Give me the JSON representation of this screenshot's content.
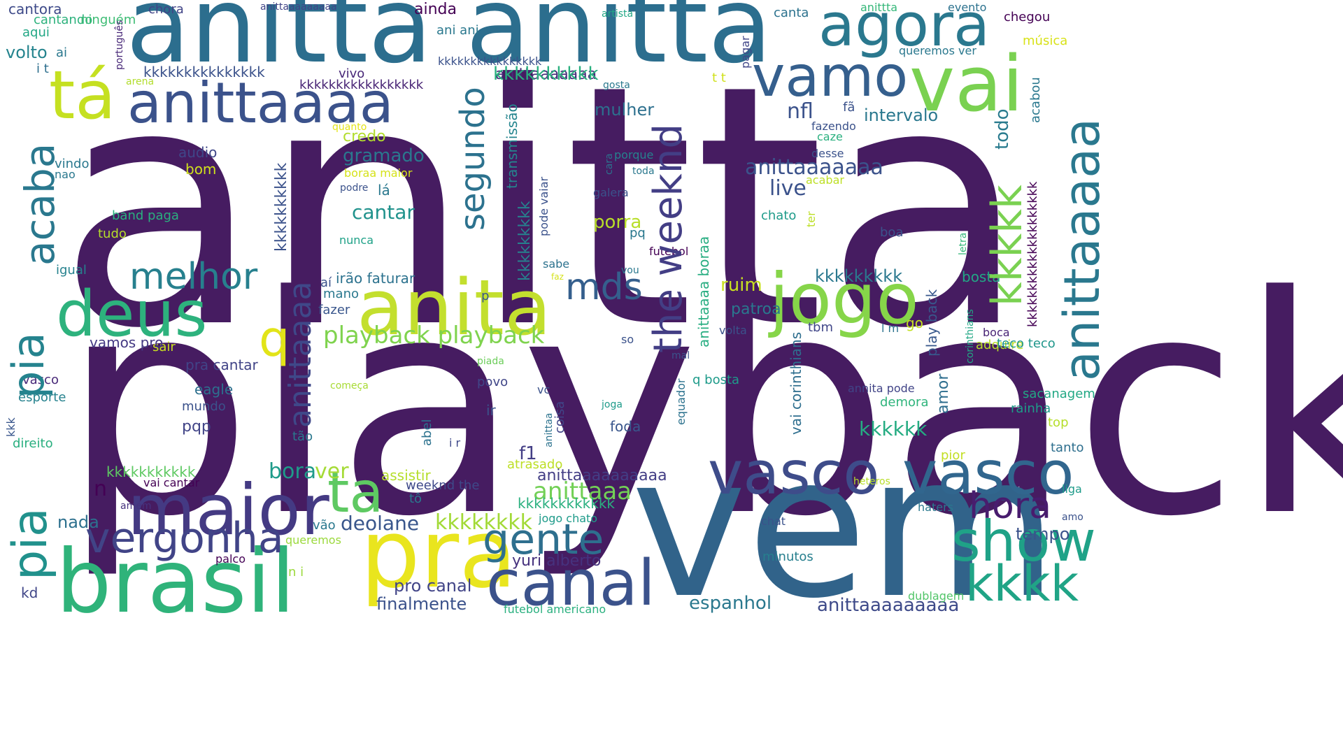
{
  "words": [
    {
      "text": "anitta",
      "color": "#461c61"
    },
    {
      "text": "playback",
      "color": "#461c61"
    },
    {
      "text": "vem",
      "color": "#31638a"
    },
    {
      "text": "anitta anitta",
      "color": "#2c6e8e"
    },
    {
      "text": "brasil",
      "color": "#2fb37a"
    },
    {
      "text": "pra",
      "color": "#e9e51e"
    },
    {
      "text": "maior",
      "color": "#443a83"
    },
    {
      "text": "anita",
      "color": "#c3df2e"
    },
    {
      "text": "deus",
      "color": "#2db27d"
    },
    {
      "text": "jogo",
      "color": "#86d549"
    },
    {
      "text": "vai",
      "color": "#7ad151"
    },
    {
      "text": "tá",
      "color": "#c5e021"
    },
    {
      "text": "anittaaaa",
      "color": "#3b528b"
    },
    {
      "text": "canal",
      "color": "#3b528b"
    },
    {
      "text": "vasco",
      "color": "#3e4c8a"
    },
    {
      "text": "vasco",
      "color": "#31668e"
    },
    {
      "text": "agora",
      "color": "#2a788e"
    },
    {
      "text": "vamo",
      "color": "#355f8d"
    },
    {
      "text": "show",
      "color": "#1fa287"
    },
    {
      "text": "kkkk",
      "color": "#20a486"
    },
    {
      "text": "ta",
      "color": "#5ec962"
    },
    {
      "text": "vergonha",
      "color": "#414487"
    },
    {
      "text": "gente",
      "color": "#2e6f8e"
    },
    {
      "text": "melhor",
      "color": "#27808e"
    },
    {
      "text": "hora",
      "color": "#481c6e"
    },
    {
      "text": "mds",
      "color": "#355f8d"
    },
    {
      "text": "q",
      "color": "#e2e418"
    },
    {
      "text": "playback playback",
      "color": "#7fd34e"
    },
    {
      "text": "anittaaaa",
      "color": "#3f4889"
    },
    {
      "text": "anittaaaaa",
      "color": "#2a788e"
    },
    {
      "text": "acaba",
      "color": "#2a788e"
    },
    {
      "text": "pia",
      "color": "#25838e"
    },
    {
      "text": "pia",
      "color": "#21918c"
    },
    {
      "text": "the weeknd",
      "color": "#433e85"
    },
    {
      "text": "segundo",
      "color": "#2c728e"
    },
    {
      "text": "kkkkk",
      "color": "#7ad151"
    },
    {
      "text": "anittaaaaaaa",
      "color": "#3b528b"
    },
    {
      "text": "kkkkkkkk",
      "color": "#a2da37"
    },
    {
      "text": "anittaaa",
      "color": "#73d056"
    },
    {
      "text": "anittaaaaaaaaa",
      "color": "#3e4a89"
    },
    {
      "text": "anittaaaaaaa",
      "color": "#472c7a"
    },
    {
      "text": "anittaaaaaaaaaa",
      "color": "#433e85"
    },
    {
      "text": "deolane",
      "color": "#39568c"
    },
    {
      "text": "espanhol",
      "color": "#2a788e"
    },
    {
      "text": "finalmente",
      "color": "#3b528b"
    },
    {
      "text": "pro canal",
      "color": "#414487"
    },
    {
      "text": "yuri alberto",
      "color": "#46327e"
    },
    {
      "text": "nada",
      "color": "#2d708e"
    },
    {
      "text": "bora",
      "color": "#1e9b8a"
    },
    {
      "text": "ver",
      "color": "#a5db36"
    },
    {
      "text": "n",
      "color": "#440154"
    },
    {
      "text": "kkkkkkkkkkk",
      "color": "#5ec962"
    },
    {
      "text": "kkkkkkkkkkkk",
      "color": "#2ab07f"
    },
    {
      "text": "assistir",
      "color": "#b5de2b"
    },
    {
      "text": "weeknd the",
      "color": "#3e4989"
    },
    {
      "text": "atrasado",
      "color": "#bddf26"
    },
    {
      "text": "pior",
      "color": "#c2df23"
    },
    {
      "text": "f1",
      "color": "#433e85"
    },
    {
      "text": "kkkkkk",
      "color": "#25ac82"
    },
    {
      "text": "kkkkkkkkkk",
      "color": "#2ab07f"
    },
    {
      "text": "kkkkkkkkkkkkkkk",
      "color": "#3b528b"
    },
    {
      "text": "kkkkkkkkkkkkkkkkk",
      "color": "#482475"
    },
    {
      "text": "kkkkkkkkkkkkkkkkkkkk",
      "color": "#440154"
    },
    {
      "text": "kkkkkkkkk",
      "color": "#2a788e"
    },
    {
      "text": "kkkkkkkkkk",
      "color": "#3b528b"
    },
    {
      "text": "kkkkkkkkk",
      "color": "#26828e"
    },
    {
      "text": "nfl",
      "color": "#3b528b"
    },
    {
      "text": "intervalo",
      "color": "#2a788e"
    },
    {
      "text": "live",
      "color": "#3b528b"
    },
    {
      "text": "mulher",
      "color": "#2d708e"
    },
    {
      "text": "cantar",
      "color": "#20928c"
    },
    {
      "text": "gramado",
      "color": "#2a788e"
    },
    {
      "text": "credo",
      "color": "#b2dd2d"
    },
    {
      "text": "porra",
      "color": "#b8de29"
    },
    {
      "text": "ruim",
      "color": "#c8e020"
    },
    {
      "text": "patroa",
      "color": "#2a788e"
    },
    {
      "text": "irão faturar",
      "color": "#2c728e"
    },
    {
      "text": "amor",
      "color": "#2e6e8e"
    },
    {
      "text": "play back",
      "color": "#38588c"
    },
    {
      "text": "vai corinthians",
      "color": "#2e6e8e"
    },
    {
      "text": "transmissão",
      "color": "#25858e"
    },
    {
      "text": "todo",
      "color": "#297b8e"
    },
    {
      "text": "acabou",
      "color": "#2a788e"
    },
    {
      "text": "anittaaaa boraa",
      "color": "#27ad81"
    },
    {
      "text": "corinthians",
      "color": "#22a785"
    },
    {
      "text": "adquire",
      "color": "#b8de29"
    },
    {
      "text": "sacanagem",
      "color": "#22a884"
    },
    {
      "text": "rainha",
      "color": "#1e9c89"
    },
    {
      "text": "tempo",
      "color": "#3b528b"
    },
    {
      "text": "demora",
      "color": "#2fb47c"
    },
    {
      "text": "teco teco",
      "color": "#1f968b"
    },
    {
      "text": "minutos",
      "color": "#277f8e"
    },
    {
      "text": "dublagem",
      "color": "#52c569"
    },
    {
      "text": "queremos",
      "color": "#9bd93c"
    },
    {
      "text": "palco",
      "color": "#440154"
    },
    {
      "text": "direito",
      "color": "#29af7f"
    },
    {
      "text": "kkk",
      "color": "#39568c"
    },
    {
      "text": "kd",
      "color": "#404688"
    },
    {
      "text": "vasco",
      "color": "#482878"
    },
    {
      "text": "esporte",
      "color": "#26828e"
    },
    {
      "text": "mundo",
      "color": "#3b528b"
    },
    {
      "text": "pqp",
      "color": "#414487"
    },
    {
      "text": "eagle",
      "color": "#2d708e"
    },
    {
      "text": "pra cantar",
      "color": "#414487"
    },
    {
      "text": "sair",
      "color": "#c8e020"
    },
    {
      "text": "vamos pro",
      "color": "#443983"
    },
    {
      "text": "igual",
      "color": "#26828e"
    },
    {
      "text": "tudo",
      "color": "#b5de2b"
    },
    {
      "text": "band paga",
      "color": "#2ab07f"
    },
    {
      "text": "vindo",
      "color": "#2a788e"
    },
    {
      "text": "nao",
      "color": "#2a788e"
    },
    {
      "text": "bom",
      "color": "#d0e11c"
    },
    {
      "text": "audio",
      "color": "#3f4788"
    },
    {
      "text": "cantando",
      "color": "#2db27d"
    },
    {
      "text": "cantora",
      "color": "#3e4a89"
    },
    {
      "text": "aqui",
      "color": "#22a785"
    },
    {
      "text": "volto",
      "color": "#25848e"
    },
    {
      "text": "ai",
      "color": "#2a788e"
    },
    {
      "text": "i t",
      "color": "#2e6f8e"
    },
    {
      "text": "ninguém",
      "color": "#3dbc74"
    },
    {
      "text": "português",
      "color": "#482878"
    },
    {
      "text": "chora",
      "color": "#414487"
    },
    {
      "text": "anittaaaaaaaaa",
      "color": "#414487"
    },
    {
      "text": "ainda",
      "color": "#440154"
    },
    {
      "text": "ani ani",
      "color": "#2a788e"
    },
    {
      "text": "kkkkkkkkkkkkkkkk",
      "color": "#3b528b"
    },
    {
      "text": "vivo",
      "color": "#482878"
    },
    {
      "text": "arena",
      "color": "#b2dd2d"
    },
    {
      "text": "quanto",
      "color": "#e5e419"
    },
    {
      "text": "boraa maior",
      "color": "#d5e21a"
    },
    {
      "text": "podre",
      "color": "#3b528b"
    },
    {
      "text": "lá",
      "color": "#2a788e"
    },
    {
      "text": "nunca",
      "color": "#1fa187"
    },
    {
      "text": "aí",
      "color": "#3b528b"
    },
    {
      "text": "mano",
      "color": "#2a788e"
    },
    {
      "text": "fazer",
      "color": "#39568c"
    },
    {
      "text": "p",
      "color": "#39568c"
    },
    {
      "text": "piada",
      "color": "#6ccd5a"
    },
    {
      "text": "começa",
      "color": "#a8db34"
    },
    {
      "text": "povo",
      "color": "#404688"
    },
    {
      "text": "ir",
      "color": "#3b528b"
    },
    {
      "text": "abel",
      "color": "#2c728e"
    },
    {
      "text": "tão",
      "color": "#2a788e"
    },
    {
      "text": "i r",
      "color": "#3e4989"
    },
    {
      "text": "vai cantar",
      "color": "#440154"
    },
    {
      "text": "amém",
      "color": "#46327e"
    },
    {
      "text": "vão",
      "color": "#2a788e"
    },
    {
      "text": "n i",
      "color": "#9bd93c"
    },
    {
      "text": "jogo chato",
      "color": "#1e9b8a"
    },
    {
      "text": "tô",
      "color": "#2a788e"
    },
    {
      "text": "vc",
      "color": "#3b528b"
    },
    {
      "text": "coisa",
      "color": "#404688"
    },
    {
      "text": "sabe",
      "color": "#2c728e"
    },
    {
      "text": "faz",
      "color": "#d5e21a"
    },
    {
      "text": "pode vaiar",
      "color": "#3b528b"
    },
    {
      "text": "galera",
      "color": "#3b528b"
    },
    {
      "text": "pq",
      "color": "#2a788e"
    },
    {
      "text": "vou",
      "color": "#2a788e"
    },
    {
      "text": "so",
      "color": "#3b528b"
    },
    {
      "text": "foda",
      "color": "#39568c"
    },
    {
      "text": "joga",
      "color": "#1e9b8a"
    },
    {
      "text": "anittaa",
      "color": "#2c728e"
    },
    {
      "text": "mal",
      "color": "#3b528b"
    },
    {
      "text": "equador",
      "color": "#2c728e"
    },
    {
      "text": "futebol",
      "color": "#440154"
    },
    {
      "text": "cara",
      "color": "#2c728e"
    },
    {
      "text": "porque",
      "color": "#26828e"
    },
    {
      "text": "toda",
      "color": "#2a788e"
    },
    {
      "text": "gosta",
      "color": "#2a788e"
    },
    {
      "text": "t t",
      "color": "#d0e11c"
    },
    {
      "text": "pagar",
      "color": "#404688"
    },
    {
      "text": "fã",
      "color": "#3b528b"
    },
    {
      "text": "fazendo",
      "color": "#3b528b"
    },
    {
      "text": "caze",
      "color": "#2ab07f"
    },
    {
      "text": "desse",
      "color": "#3b528b"
    },
    {
      "text": "acabar",
      "color": "#bddf26"
    },
    {
      "text": "chato",
      "color": "#1e9b8a"
    },
    {
      "text": "ter",
      "color": "#bddf26"
    },
    {
      "text": "volta",
      "color": "#3b528b"
    },
    {
      "text": "q bosta",
      "color": "#1e9b8a"
    },
    {
      "text": "l m",
      "color": "#2c728e"
    },
    {
      "text": "go",
      "color": "#c2df23"
    },
    {
      "text": "tbm",
      "color": "#404688"
    },
    {
      "text": "boca",
      "color": "#482475"
    },
    {
      "text": "annita pode",
      "color": "#414487"
    },
    {
      "text": "bosta",
      "color": "#22a785"
    },
    {
      "text": "top",
      "color": "#b5de2b"
    },
    {
      "text": "tanto",
      "color": "#2e6f8e"
    },
    {
      "text": "liga",
      "color": "#1e9b8a"
    },
    {
      "text": "amo",
      "color": "#3b528b"
    },
    {
      "text": "haters",
      "color": "#2a788e"
    },
    {
      "text": "chat",
      "color": "#3b528b"
    },
    {
      "text": "heteros",
      "color": "#b8de29"
    },
    {
      "text": "boa",
      "color": "#3b528b"
    },
    {
      "text": "letra",
      "color": "#35b779"
    },
    {
      "text": "canta",
      "color": "#2c728e"
    },
    {
      "text": "anittta",
      "color": "#35b779"
    },
    {
      "text": "evento",
      "color": "#2c728e"
    },
    {
      "text": "chegou",
      "color": "#440154"
    },
    {
      "text": "música",
      "color": "#d8e219"
    },
    {
      "text": "queremos ver",
      "color": "#2a788e"
    },
    {
      "text": "artista",
      "color": "#22a785"
    },
    {
      "text": "futebol americano",
      "color": "#2ab07f"
    }
  ]
}
